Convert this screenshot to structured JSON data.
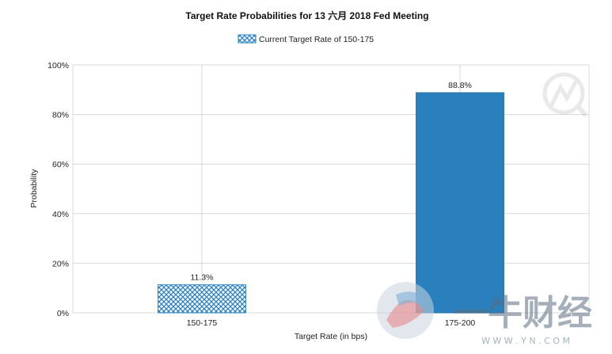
{
  "chart_data": {
    "type": "bar",
    "title": "Target Rate Probabilities for 13 六月 2018  Fed Meeting",
    "legend": {
      "label": "Current Target Rate of 150-175",
      "position": "top-center"
    },
    "xlabel": "Target Rate (in bps)",
    "ylabel": "Probability",
    "categories": [
      "150-175",
      "175-200"
    ],
    "values": [
      11.3,
      88.8
    ],
    "data_labels": [
      "11.3%",
      "88.8%"
    ],
    "ylim": [
      0,
      100
    ],
    "yticks": [
      "0%",
      "20%",
      "40%",
      "60%",
      "80%",
      "100%"
    ],
    "grid": true,
    "bar_styles": [
      "hatched",
      "solid"
    ],
    "colors": {
      "current_bar": "#2a82c0",
      "target_bar": "#2a80bd",
      "grid": "#d8d8d8"
    }
  },
  "watermark": {
    "brand": "一牛财经",
    "url": "W W W . Y N . C O M"
  }
}
